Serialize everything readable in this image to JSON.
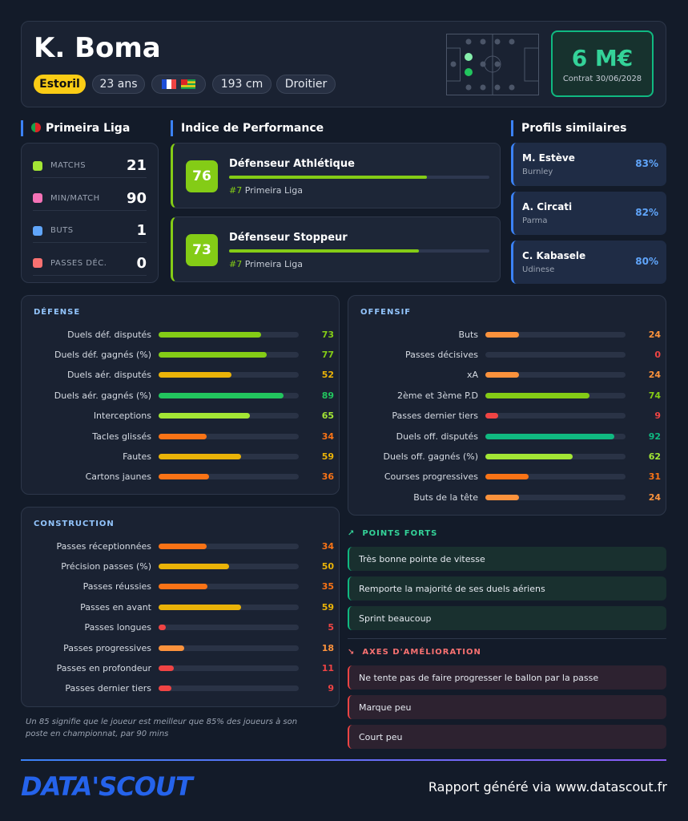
{
  "header": {
    "name": "K. Boma",
    "club": "Estoril",
    "age": "23 ans",
    "height": "193 cm",
    "foot": "Droitier",
    "value": "6 M€",
    "contract": "Contrat 30/06/2028"
  },
  "league": {
    "title": "Primeira Liga",
    "stats": [
      {
        "label": "MATCHS",
        "value": 21
      },
      {
        "label": "MIN/MATCH",
        "value": 90
      },
      {
        "label": "BUTS",
        "value": 1
      },
      {
        "label": "PASSES DÉC.",
        "value": 0
      }
    ]
  },
  "performance": {
    "title": "Indice de Performance",
    "profiles": [
      {
        "score": 76,
        "name": "Défenseur Athlétique",
        "rank": "#7",
        "league": "Primeira Liga"
      },
      {
        "score": 73,
        "name": "Défenseur Stoppeur",
        "rank": "#7",
        "league": "Primeira Liga"
      }
    ]
  },
  "similar": {
    "title": "Profils similaires",
    "players": [
      {
        "name": "M. Estève",
        "club": "Burnley",
        "match": "83%"
      },
      {
        "name": "A. Circati",
        "club": "Parma",
        "match": "82%"
      },
      {
        "name": "C. Kabasele",
        "club": "Udinese",
        "match": "80%"
      }
    ]
  },
  "sections": [
    {
      "title": "DÉFENSE",
      "metrics": [
        {
          "label": "Duels déf. disputés",
          "value": 73
        },
        {
          "label": "Duels déf. gagnés (%)",
          "value": 77
        },
        {
          "label": "Duels aér. disputés",
          "value": 52
        },
        {
          "label": "Duels aér. gagnés (%)",
          "value": 89
        },
        {
          "label": "Interceptions",
          "value": 65
        },
        {
          "label": "Tacles glissés",
          "value": 34
        },
        {
          "label": "Fautes",
          "value": 59
        },
        {
          "label": "Cartons jaunes",
          "value": 36
        }
      ]
    },
    {
      "title": "OFFENSIF",
      "metrics": [
        {
          "label": "Buts",
          "value": 24
        },
        {
          "label": "Passes décisives",
          "value": 0
        },
        {
          "label": "xA",
          "value": 24
        },
        {
          "label": "2ème et 3ème P.D",
          "value": 74
        },
        {
          "label": "Passes dernier tiers",
          "value": 9
        },
        {
          "label": "Duels off. disputés",
          "value": 92
        },
        {
          "label": "Duels off. gagnés (%)",
          "value": 62
        },
        {
          "label": "Courses progressives",
          "value": 31
        },
        {
          "label": "Buts de la tête",
          "value": 24
        }
      ]
    },
    {
      "title": "CONSTRUCTION",
      "metrics": [
        {
          "label": "Passes réceptionnées",
          "value": 34
        },
        {
          "label": "Précision passes (%)",
          "value": 50
        },
        {
          "label": "Passes réussies",
          "value": 35
        },
        {
          "label": "Passes en avant",
          "value": 59
        },
        {
          "label": "Passes longues",
          "value": 5
        },
        {
          "label": "Passes progressives",
          "value": 18
        },
        {
          "label": "Passes en profondeur",
          "value": 11
        },
        {
          "label": "Passes dernier tiers",
          "value": 9
        }
      ]
    }
  ],
  "strengths": {
    "title": "POINTS FORTS",
    "items": [
      "Très bonne pointe de vitesse",
      "Remporte la majorité de ses duels aériens",
      "Sprint beaucoup"
    ]
  },
  "weaknesses": {
    "title": "AXES D'AMÉLIORATION",
    "items": [
      "Ne tente pas de faire progresser le ballon par la passe",
      "Marque peu",
      "Court peu"
    ]
  },
  "footnote": "Un 85 signifie que le joueur est meilleur que 85% des joueurs à son poste en championnat, par 90 mins",
  "footer": {
    "logo": "DATA'SCOUT",
    "text": "Rapport généré via www.datascout.fr"
  }
}
